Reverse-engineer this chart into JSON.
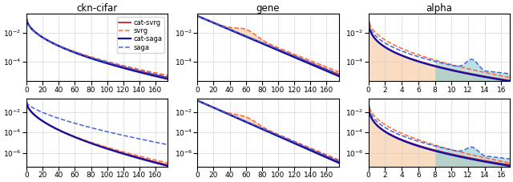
{
  "titles": [
    "ckn-cifar",
    "gene",
    "alpha"
  ],
  "legend_labels": [
    "cat-svrg",
    "svrg",
    "cat-saga",
    "saga"
  ],
  "line_colors_red": [
    "#cc2222",
    "#ff6633",
    "#1111aa",
    "#4466dd"
  ],
  "fill_color_orange": "#f5c090",
  "fill_color_blue": "#80c8d0",
  "figsize": [
    6.4,
    2.27
  ],
  "dpi": 100
}
